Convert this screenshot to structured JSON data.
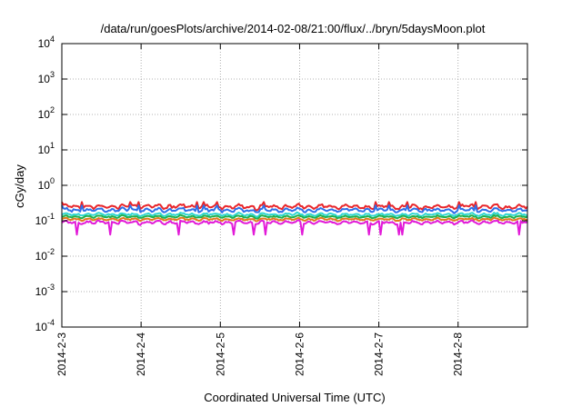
{
  "chart_data": {
    "type": "line",
    "title": "/data/run/goesPlots/archive/2014-02-08/21:00/flux/../bryn/5daysMoon.plot",
    "xlabel": "Coordinated Universal Time (UTC)",
    "ylabel": "cGy/day",
    "yscale": "log",
    "ylim": [
      0.0001,
      10000
    ],
    "y_ticks": [
      {
        "base": "10",
        "exp": "-4"
      },
      {
        "base": "10",
        "exp": "-3"
      },
      {
        "base": "10",
        "exp": "-2"
      },
      {
        "base": "10",
        "exp": "-1"
      },
      {
        "base": "10",
        "exp": "0"
      },
      {
        "base": "10",
        "exp": "1"
      },
      {
        "base": "10",
        "exp": "2"
      },
      {
        "base": "10",
        "exp": "3"
      },
      {
        "base": "10",
        "exp": "4"
      }
    ],
    "x_ticks": [
      "2014-2-3",
      "2014-2-4",
      "2014-2-5",
      "2014-2-6",
      "2014-2-7",
      "2014-2-8"
    ],
    "xlim": [
      "2014-02-03T00:00",
      "2014-02-08T21:00"
    ],
    "grid": true,
    "legend": "none",
    "series": [
      {
        "color": "#e8262b",
        "base": 0.25,
        "amp": 0.18
      },
      {
        "color": "#2f6fe8",
        "base": 0.2,
        "amp": 0.16
      },
      {
        "color": "#2fd6d0",
        "base": 0.15,
        "amp": 0.12
      },
      {
        "color": "#22b04a",
        "base": 0.13,
        "amp": 0.1
      },
      {
        "color": "#e07a1c",
        "base": 0.11,
        "amp": 0.1
      },
      {
        "color": "#e21ad8",
        "base": 0.09,
        "amp": 0.14
      }
    ]
  }
}
